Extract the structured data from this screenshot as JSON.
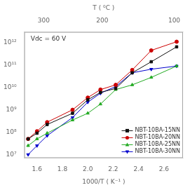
{
  "chart_data": {
    "type": "line",
    "xlabel": "1000/T ( K⁻¹ )",
    "x2label": "T ( ⁰C )",
    "annotation": "Vdc = 60 V",
    "log": "y",
    "grid": false,
    "legend": "lower right",
    "xlim": [
      1.5,
      2.75
    ],
    "ylim": [
      7000000.0,
      3000000000000.0
    ],
    "x2lim": [
      1.5,
      2.75
    ],
    "xticks": [
      1.6,
      1.8,
      {
        "value": 2.0,
        "label": "2.0"
      },
      2.2,
      2.4,
      2.6
    ],
    "x2ticks": [
      {
        "value": 1.653,
        "label": "300"
      },
      {
        "value": 2.114,
        "label": "200"
      },
      {
        "value": 2.681,
        "label": "100"
      }
    ],
    "yticks": [
      {
        "value": 10000000.0,
        "label": "10⁷"
      },
      {
        "value": 100000000.0,
        "label": "10⁸"
      },
      {
        "value": 1000000000.0,
        "label": "10⁹"
      },
      {
        "value": 10000000000.0,
        "label": "10¹⁰"
      },
      {
        "value": 100000000000.0,
        "label": "10¹¹"
      },
      {
        "value": 1000000000000.0,
        "label": "10¹²"
      }
    ],
    "x": [
      1.53,
      1.6,
      1.68,
      1.88,
      2.0,
      2.1,
      2.22,
      2.35,
      2.5,
      2.7
    ],
    "series": [
      {
        "name": "NBT-10BA-15NN",
        "color": "#111111",
        "marker": "square",
        "values": [
          50000000.0,
          90000000.0,
          220000000.0,
          700000000.0,
          2800000000.0,
          6000000000.0,
          9000000000.0,
          45000000000.0,
          140000000000.0,
          650000000000.0
        ]
      },
      {
        "name": "NBT-10BA-20NN",
        "color": "#cc0000",
        "marker": "circle",
        "values": [
          50000000.0,
          110000000.0,
          280000000.0,
          1000000000.0,
          3500000000.0,
          8000000000.0,
          13000000000.0,
          60000000000.0,
          450000000000.0,
          1100000000000.0
        ]
      },
      {
        "name": "NBT-10BA-25NN",
        "color": "#22aa22",
        "marker": "triangle-up",
        "values": [
          25000000.0,
          50000000.0,
          90000000.0,
          350000000.0,
          700000000.0,
          1800000000.0,
          8000000000.0,
          13000000000.0,
          28000000000.0,
          90000000000.0
        ]
      },
      {
        "name": "NBT-10BA-30NN",
        "color": "#0000cc",
        "marker": "triangle-down",
        "values": [
          10000000.0,
          25000000.0,
          70000000.0,
          450000000.0,
          2200000000.0,
          5500000000.0,
          11000000000.0,
          45000000000.0,
          65000000000.0,
          90000000000.0
        ]
      }
    ]
  }
}
